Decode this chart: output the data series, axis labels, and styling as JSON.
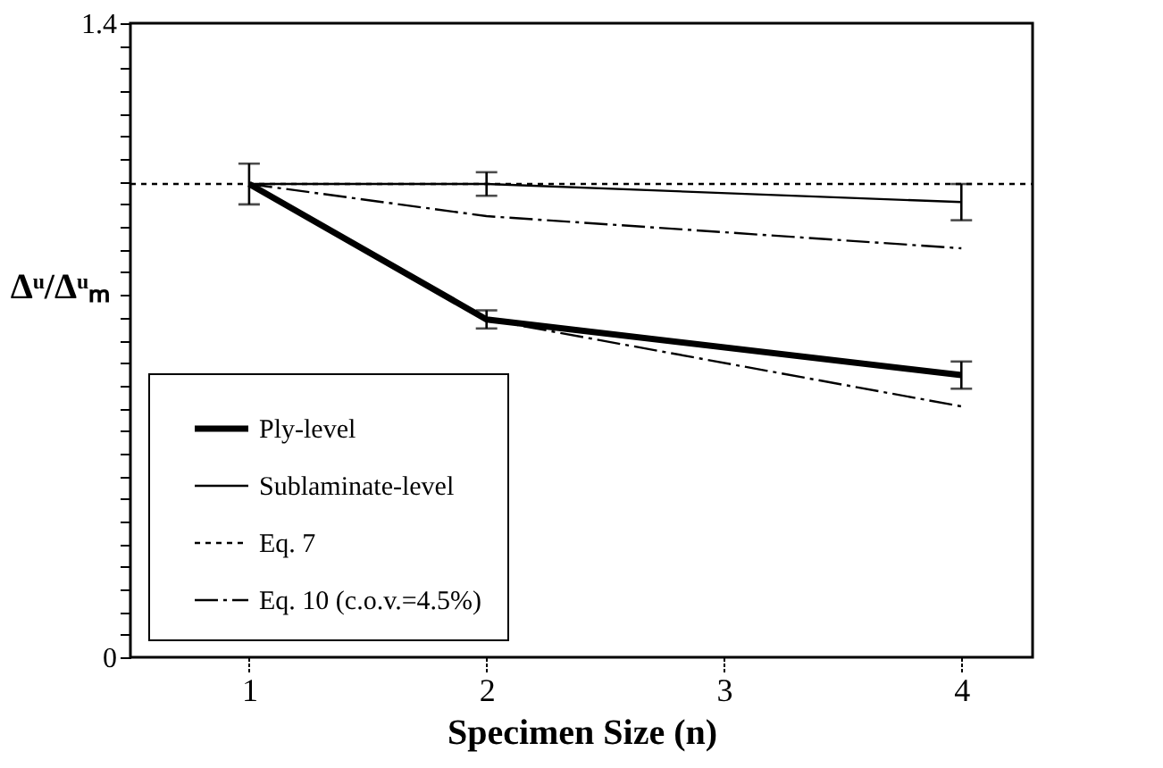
{
  "chart_data": {
    "type": "line",
    "xlabel": "Specimen Size (n)",
    "ylabel": "Δᵘ/Δᵘₘ",
    "xlim": [
      0.5,
      4.3
    ],
    "xticks": [
      1,
      2,
      3,
      4
    ],
    "ylim": [
      0,
      1.4
    ],
    "yticks": [
      0,
      {
        "value": 0.05,
        "label": null
      },
      {
        "value": 0.1,
        "label": null
      },
      {
        "value": 0.15,
        "label": null
      },
      {
        "value": 0.2,
        "label": null
      },
      {
        "value": 0.25,
        "label": null
      },
      {
        "value": 0.3,
        "label": null
      },
      {
        "value": 0.35,
        "label": null
      },
      {
        "value": 0.4,
        "label": null
      },
      {
        "value": 0.45,
        "label": null
      },
      {
        "value": 0.5,
        "label": null
      },
      {
        "value": 0.55,
        "label": null
      },
      {
        "value": 0.6,
        "label": null
      },
      {
        "value": 0.65,
        "label": null
      },
      {
        "value": 0.7,
        "label": null
      },
      {
        "value": 0.75,
        "label": null
      },
      {
        "value": 0.8,
        "label": null
      },
      {
        "value": 0.85,
        "label": null
      },
      {
        "value": 0.9,
        "label": null
      },
      {
        "value": 0.95,
        "label": null
      },
      {
        "value": 1.0,
        "label": null
      },
      {
        "value": 1.05,
        "label": null
      },
      {
        "value": 1.1,
        "label": null
      },
      {
        "value": 1.15,
        "label": null
      },
      {
        "value": 1.2,
        "label": null
      },
      {
        "value": 1.25,
        "label": null
      },
      {
        "value": 1.3,
        "label": null
      },
      {
        "value": 1.35,
        "label": null
      },
      1.4
    ],
    "grid": false,
    "legend": "bottom left",
    "marker": "none",
    "series": [
      {
        "name": "Ply-level",
        "color": "#000000",
        "line_style": "solid",
        "x": [
          1,
          2,
          4
        ],
        "values": [
          1.045,
          0.746,
          0.623
        ],
        "errors": [
          0.045,
          0.02,
          0.03
        ]
      },
      {
        "name": "Sublaminate-level",
        "color": "#000000",
        "line_style": "solid",
        "x": [
          1,
          2,
          4
        ],
        "values": [
          1.045,
          1.045,
          1.005
        ],
        "errors": [
          null,
          0.026,
          0.04
        ]
      },
      {
        "name": "Eq. 7",
        "color": "#000000",
        "line_style": "dotted",
        "x": [
          0.5,
          4.3
        ],
        "values": [
          1.045,
          1.045
        ]
      },
      {
        "name": "Eq. 10 (c.o.v.=4.5%)",
        "color": "#000000",
        "line_style": "dashed",
        "x": [
          1,
          2,
          4
        ],
        "values": [
          1.045,
          0.974,
          0.903
        ]
      },
      {
        "color": "#000000",
        "line_style": "dashed",
        "x": [
          2,
          4
        ],
        "values": [
          0.746,
          0.554
        ]
      }
    ]
  }
}
